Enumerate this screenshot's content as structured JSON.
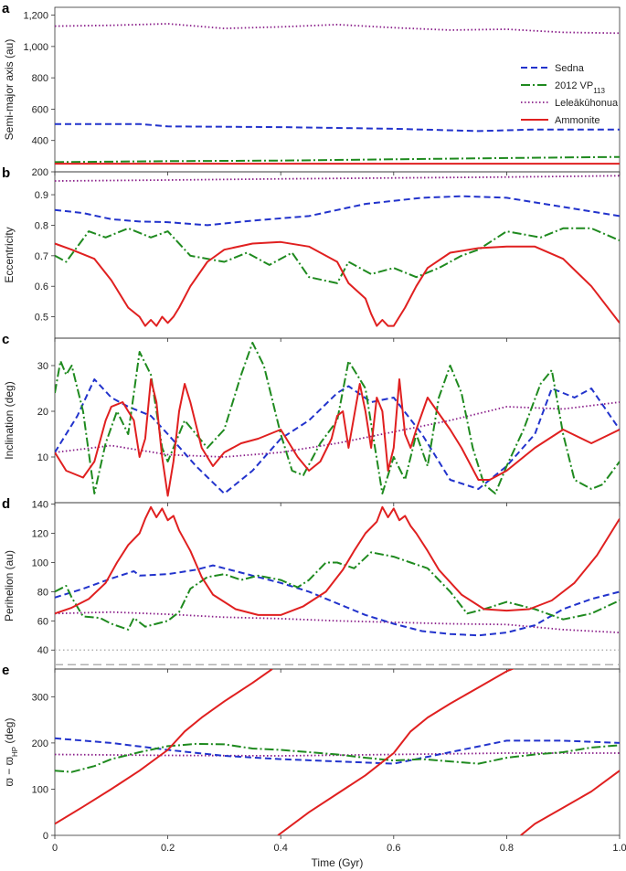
{
  "figure": {
    "xlabel": "Time (Gyr)",
    "xticks": [
      "0",
      "0.2",
      "0.4",
      "0.6",
      "0.8",
      "1.0"
    ],
    "legend": [
      "Sedna",
      "2012 VP",
      "Leleākūhonua",
      "Ammonite"
    ],
    "legend_sub": "113",
    "colors": {
      "Sedna": "#2233cc",
      "2012 VP113": "#1f8a1f",
      "Leleakuhonua": "#8a1f8a",
      "Ammonite": "#e02020",
      "ref": "#b0b0b0"
    }
  },
  "chart_data": [
    {
      "panel": "a",
      "type": "line",
      "ylabel": "Semi-major axis (au)",
      "ylim": [
        200,
        1250
      ],
      "yticks": [
        200,
        400,
        600,
        800,
        1000,
        1200
      ],
      "ytick_labels": [
        "200",
        "400",
        "600",
        "800",
        "1,000",
        "1,200"
      ],
      "legend_position": "right",
      "series": [
        {
          "name": "Sedna",
          "x": [
            0,
            0.15,
            0.2,
            0.4,
            0.6,
            0.75,
            0.85,
            1.0
          ],
          "y": [
            505,
            505,
            490,
            485,
            475,
            460,
            470,
            470
          ]
        },
        {
          "name": "2012 VP113",
          "x": [
            0,
            0.2,
            0.4,
            0.6,
            0.8,
            1.0
          ],
          "y": [
            262,
            268,
            272,
            280,
            288,
            295
          ]
        },
        {
          "name": "Leleākūhonua",
          "x": [
            0,
            0.1,
            0.2,
            0.3,
            0.4,
            0.5,
            0.6,
            0.7,
            0.8,
            0.9,
            1.0
          ],
          "y": [
            1130,
            1135,
            1145,
            1115,
            1125,
            1140,
            1120,
            1105,
            1110,
            1090,
            1085
          ]
        },
        {
          "name": "Ammonite",
          "x": [
            0,
            0.2,
            0.4,
            0.6,
            0.8,
            1.0
          ],
          "y": [
            252,
            252,
            252,
            252,
            252,
            252
          ]
        }
      ]
    },
    {
      "panel": "b",
      "type": "line",
      "ylabel": "Eccentricity",
      "ylim": [
        0.43,
        0.975
      ],
      "yticks": [
        0.5,
        0.6,
        0.7,
        0.8,
        0.9
      ],
      "ytick_labels": [
        "0.5",
        "0.6",
        "0.7",
        "0.8",
        "0.9"
      ],
      "series": [
        {
          "name": "Sedna",
          "x": [
            0,
            0.05,
            0.1,
            0.15,
            0.2,
            0.27,
            0.35,
            0.45,
            0.55,
            0.65,
            0.72,
            0.8,
            0.9,
            1.0
          ],
          "y": [
            0.85,
            0.84,
            0.82,
            0.812,
            0.81,
            0.8,
            0.815,
            0.83,
            0.87,
            0.89,
            0.895,
            0.89,
            0.86,
            0.83
          ]
        },
        {
          "name": "2012 VP113",
          "x": [
            0,
            0.02,
            0.06,
            0.09,
            0.13,
            0.17,
            0.2,
            0.24,
            0.3,
            0.34,
            0.38,
            0.42,
            0.45,
            0.5,
            0.52,
            0.56,
            0.6,
            0.64,
            0.68,
            0.72,
            0.75,
            0.8,
            0.86,
            0.9,
            0.95,
            1.0
          ],
          "y": [
            0.7,
            0.68,
            0.78,
            0.76,
            0.79,
            0.76,
            0.78,
            0.7,
            0.68,
            0.71,
            0.67,
            0.71,
            0.63,
            0.61,
            0.68,
            0.64,
            0.66,
            0.63,
            0.66,
            0.7,
            0.72,
            0.78,
            0.76,
            0.79,
            0.79,
            0.75
          ]
        },
        {
          "name": "Leleākūhonua",
          "x": [
            0,
            0.2,
            0.4,
            0.6,
            0.8,
            1.0
          ],
          "y": [
            0.945,
            0.948,
            0.952,
            0.955,
            0.958,
            0.962
          ]
        },
        {
          "name": "Ammonite",
          "x": [
            0,
            0.03,
            0.07,
            0.1,
            0.13,
            0.15,
            0.16,
            0.17,
            0.18,
            0.19,
            0.2,
            0.21,
            0.22,
            0.24,
            0.27,
            0.3,
            0.35,
            0.4,
            0.45,
            0.5,
            0.52,
            0.55,
            0.56,
            0.57,
            0.58,
            0.59,
            0.6,
            0.61,
            0.62,
            0.64,
            0.66,
            0.7,
            0.75,
            0.8,
            0.85,
            0.9,
            0.95,
            1.0
          ],
          "y": [
            0.74,
            0.72,
            0.69,
            0.62,
            0.53,
            0.5,
            0.47,
            0.49,
            0.47,
            0.5,
            0.48,
            0.5,
            0.53,
            0.6,
            0.68,
            0.72,
            0.74,
            0.745,
            0.73,
            0.68,
            0.61,
            0.56,
            0.51,
            0.47,
            0.49,
            0.47,
            0.47,
            0.5,
            0.53,
            0.6,
            0.66,
            0.71,
            0.725,
            0.73,
            0.73,
            0.69,
            0.6,
            0.48
          ]
        }
      ]
    },
    {
      "panel": "c",
      "type": "line",
      "ylabel": "Inclination (deg)",
      "ylim": [
        0,
        36
      ],
      "yticks": [
        10,
        20,
        30
      ],
      "ytick_labels": [
        "10",
        "20",
        "30"
      ],
      "series": [
        {
          "name": "Sedna",
          "x": [
            0,
            0.04,
            0.07,
            0.1,
            0.13,
            0.17,
            0.2,
            0.25,
            0.3,
            0.35,
            0.4,
            0.45,
            0.5,
            0.52,
            0.56,
            0.6,
            0.65,
            0.7,
            0.75,
            0.8,
            0.85,
            0.88,
            0.92,
            0.95,
            1.0
          ],
          "y": [
            11,
            19,
            27,
            23,
            21,
            19,
            15,
            8,
            2,
            7,
            14,
            18,
            24,
            25.5,
            22,
            23,
            15,
            5,
            3,
            8,
            15,
            25,
            23,
            25,
            16
          ]
        },
        {
          "name": "2012 VP113",
          "x": [
            0,
            0.01,
            0.02,
            0.03,
            0.05,
            0.07,
            0.09,
            0.11,
            0.13,
            0.15,
            0.17,
            0.19,
            0.2,
            0.23,
            0.27,
            0.3,
            0.33,
            0.35,
            0.37,
            0.4,
            0.42,
            0.44,
            0.47,
            0.5,
            0.52,
            0.55,
            0.58,
            0.6,
            0.62,
            0.64,
            0.66,
            0.68,
            0.7,
            0.72,
            0.74,
            0.76,
            0.78,
            0.8,
            0.83,
            0.86,
            0.88,
            0.9,
            0.92,
            0.95,
            0.97,
            1.0
          ],
          "y": [
            24,
            31,
            28,
            30,
            20,
            2,
            13,
            20,
            15,
            33,
            28,
            12,
            9,
            18,
            12,
            16,
            28,
            35,
            30,
            15,
            7,
            6,
            13,
            18,
            31,
            25,
            2,
            10,
            5,
            15,
            8,
            23,
            30,
            24,
            12,
            4,
            2,
            8,
            16,
            26,
            29,
            15,
            5,
            3,
            4,
            9
          ]
        },
        {
          "name": "Leleākūhonua",
          "x": [
            0,
            0.1,
            0.2,
            0.3,
            0.4,
            0.5,
            0.6,
            0.7,
            0.8,
            0.9,
            1.0
          ],
          "y": [
            11,
            12.5,
            10.5,
            10,
            11,
            13,
            15.5,
            18,
            21,
            20.5,
            22
          ]
        },
        {
          "name": "Ammonite",
          "x": [
            0,
            0.02,
            0.05,
            0.07,
            0.09,
            0.1,
            0.12,
            0.13,
            0.14,
            0.15,
            0.16,
            0.17,
            0.18,
            0.19,
            0.2,
            0.21,
            0.22,
            0.23,
            0.24,
            0.26,
            0.28,
            0.3,
            0.33,
            0.36,
            0.4,
            0.43,
            0.45,
            0.47,
            0.49,
            0.5,
            0.51,
            0.52,
            0.54,
            0.55,
            0.56,
            0.57,
            0.58,
            0.59,
            0.6,
            0.61,
            0.62,
            0.63,
            0.64,
            0.66,
            0.7,
            0.72,
            0.75,
            0.77,
            0.8,
            0.85,
            0.9,
            0.95,
            1.0
          ],
          "y": [
            11,
            7,
            5.5,
            9,
            18,
            21,
            22,
            20,
            18,
            10,
            14,
            27,
            22,
            10,
            1.5,
            9,
            20,
            26,
            22,
            12,
            8,
            11,
            13,
            14,
            16,
            10,
            7,
            9,
            14,
            19,
            20,
            12,
            26,
            20,
            12,
            23,
            20,
            7,
            12,
            27,
            15,
            12,
            16,
            23,
            16,
            12,
            5,
            5,
            7,
            12,
            16,
            13,
            16
          ]
        }
      ]
    },
    {
      "panel": "d",
      "type": "line",
      "ylabel": "Perihelion (au)",
      "ylim": [
        27,
        141
      ],
      "yticks": [
        40,
        60,
        80,
        100,
        120,
        140
      ],
      "ytick_labels": [
        "40",
        "60",
        "80",
        "100",
        "120",
        "140"
      ],
      "reference_lines": [
        40,
        30
      ],
      "series": [
        {
          "name": "Sedna",
          "x": [
            0,
            0.05,
            0.1,
            0.14,
            0.15,
            0.2,
            0.25,
            0.28,
            0.3,
            0.35,
            0.4,
            0.45,
            0.5,
            0.55,
            0.6,
            0.65,
            0.7,
            0.75,
            0.8,
            0.85,
            0.9,
            0.95,
            1.0
          ],
          "y": [
            76,
            82,
            89,
            94,
            91,
            92,
            95,
            98,
            96,
            91,
            86,
            80,
            72,
            64,
            58,
            53,
            51,
            50,
            52,
            57,
            68,
            75,
            80
          ]
        },
        {
          "name": "2012 VP113",
          "x": [
            0,
            0.01,
            0.02,
            0.03,
            0.05,
            0.08,
            0.1,
            0.13,
            0.14,
            0.16,
            0.18,
            0.2,
            0.22,
            0.24,
            0.27,
            0.3,
            0.33,
            0.36,
            0.4,
            0.43,
            0.45,
            0.48,
            0.5,
            0.53,
            0.56,
            0.6,
            0.63,
            0.66,
            0.7,
            0.73,
            0.76,
            0.8,
            0.85,
            0.9,
            0.95,
            1.0
          ],
          "y": [
            80,
            82,
            84,
            76,
            63,
            62,
            58,
            54,
            62,
            56,
            58,
            60,
            66,
            82,
            90,
            92,
            88,
            91,
            88,
            83,
            88,
            100,
            100,
            96,
            107,
            104,
            100,
            96,
            80,
            65,
            68,
            73,
            68,
            61,
            65,
            74
          ]
        },
        {
          "name": "Leleākūhonua",
          "x": [
            0,
            0.1,
            0.2,
            0.3,
            0.4,
            0.5,
            0.6,
            0.7,
            0.8,
            0.9,
            1.0
          ],
          "y": [
            65,
            66,
            64.5,
            62.5,
            61.5,
            60,
            59,
            58,
            57.5,
            54,
            52
          ]
        },
        {
          "name": "Ammonite",
          "x": [
            0,
            0.03,
            0.06,
            0.09,
            0.11,
            0.13,
            0.15,
            0.16,
            0.17,
            0.18,
            0.19,
            0.2,
            0.21,
            0.22,
            0.24,
            0.26,
            0.28,
            0.32,
            0.36,
            0.4,
            0.44,
            0.48,
            0.51,
            0.53,
            0.55,
            0.57,
            0.58,
            0.59,
            0.6,
            0.61,
            0.62,
            0.63,
            0.64,
            0.66,
            0.68,
            0.72,
            0.76,
            0.8,
            0.84,
            0.88,
            0.92,
            0.96,
            1.0
          ],
          "y": [
            65,
            69,
            75,
            86,
            100,
            112,
            120,
            130,
            138,
            131,
            137,
            129,
            132,
            122,
            108,
            90,
            78,
            68,
            64,
            64,
            70,
            80,
            95,
            108,
            120,
            128,
            138,
            131,
            137,
            129,
            132,
            125,
            120,
            108,
            95,
            78,
            68,
            67,
            68,
            74,
            86,
            105,
            130
          ]
        }
      ]
    },
    {
      "panel": "e",
      "type": "line",
      "ylabel": "ϖ − ϖ_HP (deg)",
      "ylim": [
        0,
        360
      ],
      "yticks": [
        0,
        100,
        200,
        300
      ],
      "ytick_labels": [
        "0",
        "100",
        "200",
        "300"
      ],
      "series": [
        {
          "name": "Sedna",
          "x": [
            0,
            0.1,
            0.2,
            0.3,
            0.4,
            0.5,
            0.6,
            0.7,
            0.8,
            0.9,
            1.0
          ],
          "y": [
            210,
            200,
            185,
            172,
            165,
            160,
            155,
            180,
            205,
            205,
            200
          ]
        },
        {
          "name": "2012 VP113",
          "x": [
            0,
            0.03,
            0.07,
            0.1,
            0.15,
            0.2,
            0.25,
            0.3,
            0.35,
            0.4,
            0.45,
            0.5,
            0.55,
            0.6,
            0.65,
            0.7,
            0.75,
            0.8,
            0.85,
            0.9,
            0.95,
            1.0
          ],
          "y": [
            140,
            137,
            150,
            165,
            180,
            193,
            198,
            197,
            188,
            185,
            180,
            175,
            168,
            162,
            165,
            160,
            155,
            168,
            175,
            180,
            190,
            195
          ]
        },
        {
          "name": "Leleākūhonua",
          "x": [
            0,
            0.2,
            0.4,
            0.6,
            0.8,
            1.0
          ],
          "y": [
            175,
            173,
            172,
            175,
            178,
            178
          ]
        },
        {
          "name": "Ammonite",
          "segments": [
            {
              "x": [
                0,
                0.05,
                0.1,
                0.15,
                0.2,
                0.23,
                0.26,
                0.3,
                0.35,
                0.385
              ],
              "y": [
                25,
                62,
                100,
                140,
                185,
                225,
                255,
                290,
                330,
                360
              ]
            },
            {
              "x": [
                0.395,
                0.45,
                0.5,
                0.55,
                0.6,
                0.63,
                0.66,
                0.7,
                0.75,
                0.8,
                0.82
              ],
              "y": [
                0,
                50,
                90,
                130,
                178,
                225,
                255,
                285,
                320,
                355,
                365
              ]
            },
            {
              "x": [
                0.825,
                0.85,
                0.9,
                0.95,
                1.0
              ],
              "y": [
                0,
                25,
                60,
                95,
                140
              ]
            }
          ]
        }
      ]
    }
  ]
}
